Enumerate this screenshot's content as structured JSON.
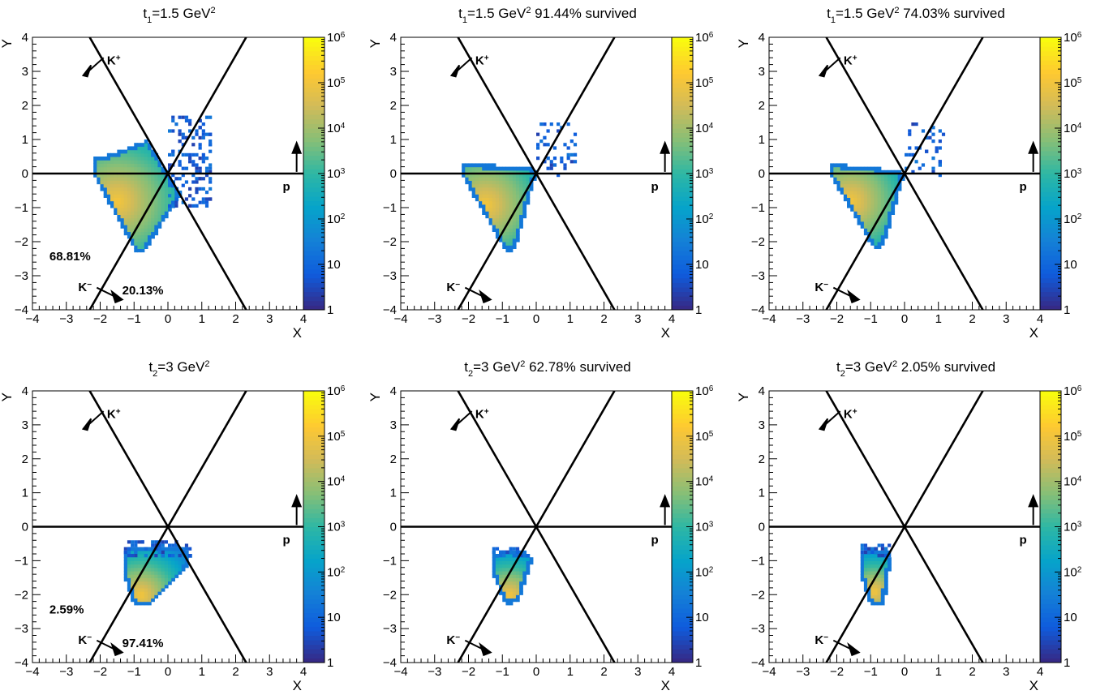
{
  "chart_data": [
    {
      "type": "heatmap",
      "row": 0,
      "col": 0,
      "title": {
        "sym": "t",
        "sub": "1",
        "val": "=1.5 GeV",
        "sup": "2",
        "extra": ""
      },
      "xlabel": "X",
      "ylabel": "Y",
      "xlim": [
        -4,
        4
      ],
      "ylim": [
        -4,
        4
      ],
      "x_ticks": [
        "−4",
        "−3",
        "−2",
        "−1",
        "0",
        "1",
        "2",
        "3",
        "4"
      ],
      "y_ticks": [
        "−4",
        "−3",
        "−2",
        "−1",
        "0",
        "1",
        "2",
        "3",
        "4"
      ],
      "colorbar": {
        "scale": "log",
        "range": [
          1,
          1000000
        ],
        "labels": [
          {
            "b": "1",
            "e": ""
          },
          {
            "b": "10",
            "e": ""
          },
          {
            "b": "10",
            "e": "2"
          },
          {
            "b": "10",
            "e": "3"
          },
          {
            "b": "10",
            "e": "4"
          },
          {
            "b": "10",
            "e": "5"
          },
          {
            "b": "10",
            "e": "6"
          }
        ]
      },
      "particle_labels": {
        "k_plus": {
          "b": "K",
          "s": "+"
        },
        "k_minus": {
          "b": "K",
          "s": "−"
        },
        "p": "p"
      },
      "region_fractions": {
        "left": "68.81%",
        "right": "20.13%"
      },
      "distribution": "wide_triangle",
      "survived": ""
    },
    {
      "type": "heatmap",
      "row": 0,
      "col": 1,
      "title": {
        "sym": "t",
        "sub": "1",
        "val": "=1.5 GeV",
        "sup": "2",
        "extra": "  91.44% survived"
      },
      "xlabel": "X",
      "ylabel": "Y",
      "xlim": [
        -4,
        4
      ],
      "ylim": [
        -4,
        4
      ],
      "x_ticks": [
        "−4",
        "−3",
        "−2",
        "−1",
        "0",
        "1",
        "2",
        "3",
        "4"
      ],
      "y_ticks": [
        "−4",
        "−3",
        "−2",
        "−1",
        "0",
        "1",
        "2",
        "3",
        "4"
      ],
      "colorbar": {
        "scale": "log",
        "range": [
          1,
          1000000
        ],
        "labels": [
          {
            "b": "1",
            "e": ""
          },
          {
            "b": "10",
            "e": ""
          },
          {
            "b": "10",
            "e": "2"
          },
          {
            "b": "10",
            "e": "3"
          },
          {
            "b": "10",
            "e": "4"
          },
          {
            "b": "10",
            "e": "5"
          },
          {
            "b": "10",
            "e": "6"
          }
        ]
      },
      "particle_labels": {
        "k_plus": {
          "b": "K",
          "s": "+"
        },
        "k_minus": {
          "b": "K",
          "s": "−"
        },
        "p": "p"
      },
      "region_fractions": {
        "left": "",
        "right": ""
      },
      "distribution": "cut_triangle_a",
      "survived": "91.44%"
    },
    {
      "type": "heatmap",
      "row": 0,
      "col": 2,
      "title": {
        "sym": "t",
        "sub": "1",
        "val": "=1.5 GeV",
        "sup": "2",
        "extra": "  74.03% survived"
      },
      "xlabel": "X",
      "ylabel": "Y",
      "xlim": [
        -4,
        4
      ],
      "ylim": [
        -4,
        4
      ],
      "x_ticks": [
        "−4",
        "−3",
        "−2",
        "−1",
        "0",
        "1",
        "2",
        "3",
        "4"
      ],
      "y_ticks": [
        "−4",
        "−3",
        "−2",
        "−1",
        "0",
        "1",
        "2",
        "3",
        "4"
      ],
      "colorbar": {
        "scale": "log",
        "range": [
          1,
          1000000
        ],
        "labels": [
          {
            "b": "1",
            "e": ""
          },
          {
            "b": "10",
            "e": ""
          },
          {
            "b": "10",
            "e": "2"
          },
          {
            "b": "10",
            "e": "3"
          },
          {
            "b": "10",
            "e": "4"
          },
          {
            "b": "10",
            "e": "5"
          },
          {
            "b": "10",
            "e": "6"
          }
        ]
      },
      "particle_labels": {
        "k_plus": {
          "b": "K",
          "s": "+"
        },
        "k_minus": {
          "b": "K",
          "s": "−"
        },
        "p": "p"
      },
      "region_fractions": {
        "left": "",
        "right": ""
      },
      "distribution": "cut_triangle_b",
      "survived": "74.03%"
    },
    {
      "type": "heatmap",
      "row": 1,
      "col": 0,
      "title": {
        "sym": "t",
        "sub": "2",
        "val": "=3 GeV",
        "sup": "2",
        "extra": ""
      },
      "xlabel": "X",
      "ylabel": "Y",
      "xlim": [
        -4,
        4
      ],
      "ylim": [
        -4,
        4
      ],
      "x_ticks": [
        "−4",
        "−3",
        "−2",
        "−1",
        "0",
        "1",
        "2",
        "3",
        "4"
      ],
      "y_ticks": [
        "−4",
        "−3",
        "−2",
        "−1",
        "0",
        "1",
        "2",
        "3",
        "4"
      ],
      "colorbar": {
        "scale": "log",
        "range": [
          1,
          1000000
        ],
        "labels": [
          {
            "b": "1",
            "e": ""
          },
          {
            "b": "10",
            "e": ""
          },
          {
            "b": "10",
            "e": "2"
          },
          {
            "b": "10",
            "e": "3"
          },
          {
            "b": "10",
            "e": "4"
          },
          {
            "b": "10",
            "e": "5"
          },
          {
            "b": "10",
            "e": "6"
          }
        ]
      },
      "particle_labels": {
        "k_plus": {
          "b": "K",
          "s": "+"
        },
        "k_minus": {
          "b": "K",
          "s": "−"
        },
        "p": "p"
      },
      "region_fractions": {
        "left": "2.59%",
        "right": "97.41%"
      },
      "distribution": "blob_full",
      "survived": ""
    },
    {
      "type": "heatmap",
      "row": 1,
      "col": 1,
      "title": {
        "sym": "t",
        "sub": "2",
        "val": "=3 GeV",
        "sup": "2",
        "extra": "  62.78% survived"
      },
      "xlabel": "X",
      "ylabel": "Y",
      "xlim": [
        -4,
        4
      ],
      "ylim": [
        -4,
        4
      ],
      "x_ticks": [
        "−4",
        "−3",
        "−2",
        "−1",
        "0",
        "1",
        "2",
        "3",
        "4"
      ],
      "y_ticks": [
        "−4",
        "−3",
        "−2",
        "−1",
        "0",
        "1",
        "2",
        "3",
        "4"
      ],
      "colorbar": {
        "scale": "log",
        "range": [
          1,
          1000000
        ],
        "labels": [
          {
            "b": "1",
            "e": ""
          },
          {
            "b": "10",
            "e": ""
          },
          {
            "b": "10",
            "e": "2"
          },
          {
            "b": "10",
            "e": "3"
          },
          {
            "b": "10",
            "e": "4"
          },
          {
            "b": "10",
            "e": "5"
          },
          {
            "b": "10",
            "e": "6"
          }
        ]
      },
      "particle_labels": {
        "k_plus": {
          "b": "K",
          "s": "+"
        },
        "k_minus": {
          "b": "K",
          "s": "−"
        },
        "p": "p"
      },
      "region_fractions": {
        "left": "",
        "right": ""
      },
      "distribution": "blob_cut_a",
      "survived": "62.78%"
    },
    {
      "type": "heatmap",
      "row": 1,
      "col": 2,
      "title": {
        "sym": "t",
        "sub": "2",
        "val": "=3 GeV",
        "sup": "2",
        "extra": "  2.05% survived"
      },
      "xlabel": "X",
      "ylabel": "Y",
      "xlim": [
        -4,
        4
      ],
      "ylim": [
        -4,
        4
      ],
      "x_ticks": [
        "−4",
        "−3",
        "−2",
        "−1",
        "0",
        "1",
        "2",
        "3",
        "4"
      ],
      "y_ticks": [
        "−4",
        "−3",
        "−2",
        "−1",
        "0",
        "1",
        "2",
        "3",
        "4"
      ],
      "colorbar": {
        "scale": "log",
        "range": [
          1,
          1000000
        ],
        "labels": [
          {
            "b": "1",
            "e": ""
          },
          {
            "b": "10",
            "e": ""
          },
          {
            "b": "10",
            "e": "2"
          },
          {
            "b": "10",
            "e": "3"
          },
          {
            "b": "10",
            "e": "4"
          },
          {
            "b": "10",
            "e": "5"
          },
          {
            "b": "10",
            "e": "6"
          }
        ]
      },
      "particle_labels": {
        "k_plus": {
          "b": "K",
          "s": "+"
        },
        "k_minus": {
          "b": "K",
          "s": "−"
        },
        "p": "p"
      },
      "region_fractions": {
        "left": "",
        "right": ""
      },
      "distribution": "blob_cut_b",
      "survived": "2.05%"
    }
  ],
  "colors": {
    "palette": [
      "#352a87",
      "#0f5cdd",
      "#1481d6",
      "#06a4ca",
      "#2eb7a4",
      "#87bf77",
      "#d1bb59",
      "#fec832",
      "#f9fb0e"
    ],
    "lines": "#000000"
  }
}
